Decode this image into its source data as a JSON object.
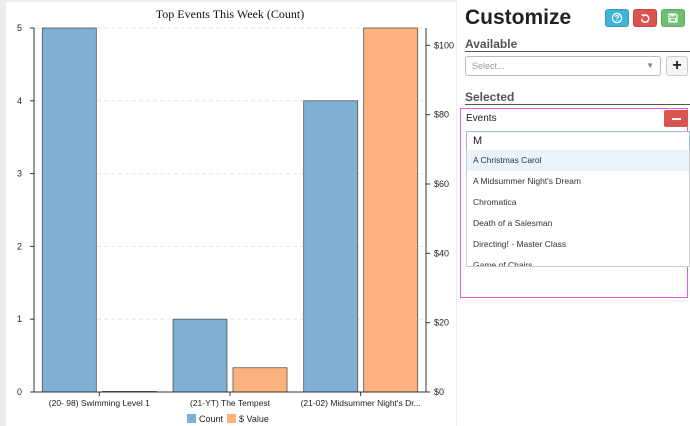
{
  "chart_data": {
    "type": "bar",
    "title": "Top Events This Week (Count)",
    "categories": [
      "(20- 98) Swimming Level 1",
      "(21-YT) The Tempest",
      "(21-02) Midsummer Night's Dr..."
    ],
    "series": [
      {
        "name": "Count",
        "axis": "left",
        "values": [
          5,
          1,
          4
        ],
        "color": "#7fafd3"
      },
      {
        "name": "$ Value",
        "axis": "right",
        "values": [
          0,
          7,
          105
        ],
        "color": "#fdb27e"
      }
    ],
    "y_left": {
      "ticks": [
        "0",
        "1",
        "2",
        "3",
        "4",
        "5"
      ],
      "lim": [
        0,
        5
      ]
    },
    "y_right": {
      "ticks": [
        "$0",
        "$20",
        "$40",
        "$60",
        "$80",
        "$100"
      ],
      "lim": [
        0,
        105
      ]
    },
    "grid": true,
    "legend_position": "bottom"
  },
  "customize": {
    "title": "Customize",
    "help_icon": "question-circle-icon",
    "reset_icon": "undo-icon",
    "save_icon": "floppy-disk-icon",
    "available_label": "Available",
    "select_placeholder": "Select...",
    "add_icon": "plus-icon",
    "selected_label": "Selected",
    "events_label": "Events",
    "remove_icon": "minus-icon",
    "search_value": "M",
    "options": [
      "A Christmas Carol",
      "A Midsummer Night's Dream",
      "Chromatica",
      "Death of a Salesman",
      "Directing! - Master Class",
      "Game of Chairs"
    ],
    "highlighted_index": 0
  }
}
